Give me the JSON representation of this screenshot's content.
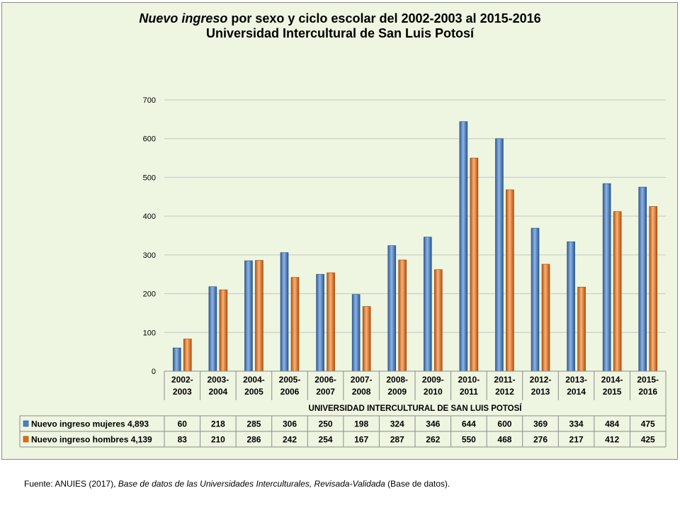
{
  "title": {
    "line1_italic": "Nuevo ingreso",
    "line1_rest": " por sexo  y  ciclo escolar del 2002-2003 al 2015-2016",
    "line2": "Universidad Intercultural de San Luis Potosí"
  },
  "source": {
    "prefix": "Fuente: ANUIES (2017), ",
    "italic": "Base de datos de las Universidades  Interculturales, Revisada-Validada",
    "suffix": "  (Base de datos)."
  },
  "chart_data": {
    "type": "bar",
    "title": "Nuevo ingreso por sexo y ciclo escolar del 2002-2003 al 2015-2016 Universidad Intercultural de San Luis Potosí",
    "xlabel": "UNIVERSIDAD INTERCULTURAL DE SAN LUIS POTOSÍ",
    "ylabel": "",
    "ylim": [
      0,
      700
    ],
    "yticks": [
      0,
      100,
      200,
      300,
      400,
      500,
      600,
      700
    ],
    "grid": true,
    "legend": "data-table-left",
    "categories": [
      [
        "2002-",
        "2003"
      ],
      [
        "2003-",
        "2004"
      ],
      [
        "2004-",
        "2005"
      ],
      [
        "2005-",
        "2006"
      ],
      [
        "2006-",
        "2007"
      ],
      [
        "2007-",
        "2008"
      ],
      [
        "2008-",
        "2009"
      ],
      [
        "2009-",
        "2010"
      ],
      [
        "2010-",
        "2011"
      ],
      [
        "2011-",
        "2012"
      ],
      [
        "2012-",
        "2013"
      ],
      [
        "2013-",
        "2014"
      ],
      [
        "2014-",
        "2015"
      ],
      [
        "2015-",
        "2016"
      ]
    ],
    "series": [
      {
        "name": "Nuevo ingreso mujeres 4,893",
        "color": "#4f81bd",
        "values": [
          60,
          218,
          285,
          306,
          250,
          198,
          324,
          346,
          644,
          600,
          369,
          334,
          484,
          475
        ]
      },
      {
        "name": "Nuevo ingreso hombres 4,139",
        "color": "#e36c0a",
        "values": [
          83,
          210,
          286,
          242,
          254,
          167,
          287,
          262,
          550,
          468,
          276,
          217,
          412,
          425
        ]
      }
    ]
  }
}
